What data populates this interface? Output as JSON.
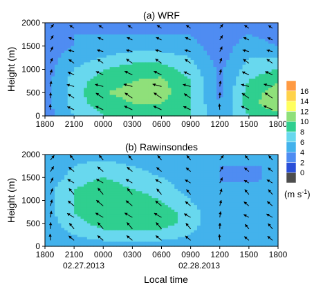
{
  "colors": {
    "levels": [
      "#4d4d4d",
      "#2a4fd8",
      "#4f8cf2",
      "#43b2ec",
      "#68d8ee",
      "#2fcf8f",
      "#8fe07a",
      "#ffff5e",
      "#ffd24a",
      "#ff9a42",
      "#ff4a3a"
    ],
    "axis": "#000000",
    "background": "#ffffff"
  },
  "colorbar": {
    "tick_labels": [
      "0",
      "2",
      "4",
      "6",
      "8",
      "10",
      "12",
      "14",
      "16"
    ],
    "unit_label": "(m s",
    "unit_superscript": "-1",
    "unit_close": ")"
  },
  "shared_x_label": "Local time",
  "date_labels": [
    "02.27.2013",
    "02.28.2013"
  ],
  "chart_data": [
    {
      "type": "heatmap",
      "title": "(a) WRF",
      "ylabel": "Height (m)",
      "xlabel": "Local time",
      "x_tick_labels": [
        "1800",
        "2100",
        "0000",
        "0300",
        "0600",
        "0900",
        "1200",
        "1500",
        "1800"
      ],
      "y_tick_labels": [
        "0",
        "500",
        "1000",
        "1500",
        "2000"
      ],
      "ylim": [
        0,
        2000
      ],
      "x": [
        0,
        3,
        6,
        9,
        12,
        15,
        18,
        21,
        24
      ],
      "y": [
        0,
        250,
        500,
        750,
        1000,
        1250,
        1500,
        1750,
        2000
      ],
      "z": [
        [
          3,
          6,
          8,
          9,
          9,
          8,
          4,
          8,
          9
        ],
        [
          3,
          7,
          9,
          10,
          10,
          8,
          4,
          9,
          12
        ],
        [
          3,
          7,
          10,
          10.5,
          11,
          8,
          3.5,
          9,
          11
        ],
        [
          3,
          7,
          9,
          10,
          10.5,
          8,
          3.5,
          8,
          10
        ],
        [
          3,
          6,
          8,
          9,
          9,
          7,
          3.5,
          7,
          8
        ],
        [
          3,
          5,
          6,
          7,
          7,
          6,
          3,
          6,
          6
        ],
        [
          3,
          4,
          5,
          5,
          5,
          4.5,
          3,
          5,
          4
        ],
        [
          2.5,
          4,
          4,
          4,
          4,
          4,
          2.5,
          4,
          3
        ],
        [
          2,
          3,
          3,
          3,
          3,
          3,
          2,
          3,
          2
        ]
      ],
      "levels": [
        0,
        2,
        4,
        6,
        8,
        10,
        12,
        14,
        16
      ]
    },
    {
      "type": "heatmap",
      "title": "(b) Rawinsondes",
      "ylabel": "Height (m)",
      "xlabel": "Local time",
      "x_tick_labels": [
        "1800",
        "2100",
        "0000",
        "0300",
        "0600",
        "0900",
        "1200",
        "1500",
        "1800"
      ],
      "y_tick_labels": [
        "0",
        "500",
        "1000",
        "1500",
        "2000"
      ],
      "ylim": [
        0,
        2000
      ],
      "x": [
        0,
        3,
        6,
        9,
        12,
        15,
        18,
        21,
        24
      ],
      "y": [
        0,
        250,
        500,
        750,
        1000,
        1250,
        1500,
        1750,
        2000
      ],
      "z": [
        [
          4,
          5,
          5,
          5,
          5,
          5,
          4,
          4,
          4
        ],
        [
          5,
          6,
          7,
          7,
          7,
          6,
          4,
          4,
          5
        ],
        [
          5,
          7,
          9,
          9,
          9,
          7,
          4,
          4,
          6
        ],
        [
          5,
          8,
          10,
          10,
          9,
          7,
          4,
          4,
          6
        ],
        [
          5,
          8,
          10,
          9,
          8,
          6,
          4,
          5,
          6
        ],
        [
          5,
          8,
          9,
          8,
          7,
          5,
          4,
          5,
          5
        ],
        [
          4,
          7,
          8,
          7,
          6,
          5,
          4,
          3,
          5
        ],
        [
          4,
          6,
          7,
          6,
          5,
          4,
          4,
          4,
          4
        ],
        [
          4,
          5,
          5,
          4,
          4,
          4,
          4,
          4,
          4
        ]
      ],
      "levels": [
        0,
        2,
        4,
        6,
        8,
        10,
        12,
        14,
        16
      ]
    }
  ]
}
